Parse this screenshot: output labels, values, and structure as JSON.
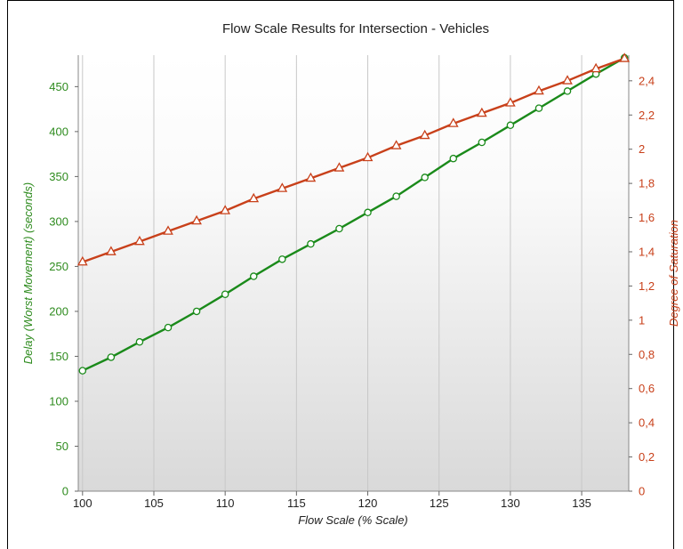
{
  "chart_data": {
    "type": "line",
    "title": "Flow Scale Results for Intersection - Vehicles",
    "xlabel": "Flow Scale (% Scale)",
    "ylabel_left": "Delay (Worst Movement) (seconds)",
    "ylabel_right": "Degree of Saturation",
    "xlim": [
      99.7,
      138.3
    ],
    "ylim_left": [
      0,
      485
    ],
    "ylim_right": [
      0,
      2.55
    ],
    "x_ticks": [
      "100",
      "105",
      "110",
      "115",
      "120",
      "125",
      "130",
      "135"
    ],
    "y_left_ticks": [
      "0",
      "50",
      "100",
      "150",
      "200",
      "250",
      "300",
      "350",
      "400",
      "450"
    ],
    "y_right_ticks": [
      "0",
      "0,2",
      "0,4",
      "0,6",
      "0,8",
      "1",
      "1,2",
      "1,4",
      "1,6",
      "1,8",
      "2",
      "2,2",
      "2,4"
    ],
    "grid": true,
    "x": [
      100,
      102,
      104,
      106,
      108,
      110,
      112,
      114,
      116,
      118,
      120,
      122,
      124,
      126,
      128,
      130,
      132,
      134,
      136,
      138
    ],
    "series": [
      {
        "axis": "left",
        "color": "#1a8a1a",
        "marker": "circle",
        "values": [
          134,
          149,
          166,
          182,
          200,
          219,
          239,
          258,
          275,
          292,
          310,
          328,
          349,
          370,
          388,
          407,
          426,
          445,
          464,
          482
        ]
      },
      {
        "axis": "right",
        "color": "#c8401a",
        "marker": "triangle",
        "values": [
          1.34,
          1.4,
          1.46,
          1.52,
          1.58,
          1.64,
          1.71,
          1.77,
          1.83,
          1.89,
          1.95,
          2.02,
          2.08,
          2.15,
          2.21,
          2.27,
          2.34,
          2.4,
          2.47,
          2.53
        ]
      }
    ]
  }
}
